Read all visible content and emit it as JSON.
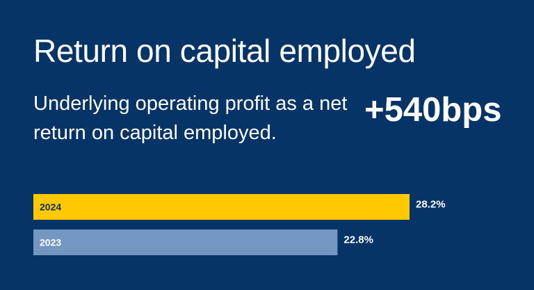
{
  "title": "Return on capital employed",
  "subtitle": "Underlying operating profit as a net return on capital employed.",
  "headline": "+540bps",
  "colors": {
    "background": "#063466",
    "bar_2024": "#FFC800",
    "bar_2023": "#7497C2",
    "text": "#FFFFFF",
    "bar_2024_label": "#063466",
    "bar_2023_label": "#FFFFFF"
  },
  "chart_data": {
    "type": "bar",
    "orientation": "horizontal",
    "categories": [
      "2024",
      "2023"
    ],
    "values": [
      28.2,
      22.8
    ],
    "value_labels": [
      "28.2%",
      "22.8%"
    ],
    "unit": "%",
    "xlim": [
      0,
      28.2
    ],
    "grid": false,
    "legend": "none"
  }
}
